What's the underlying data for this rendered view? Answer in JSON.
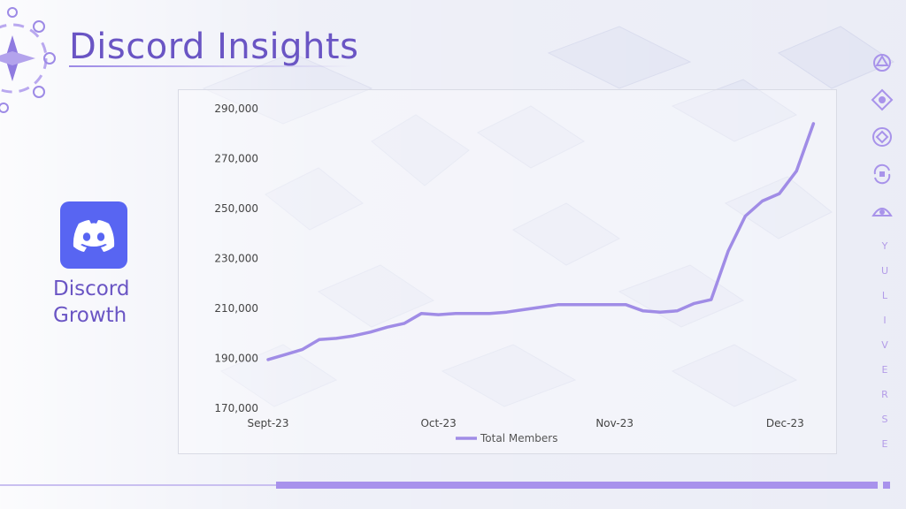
{
  "page": {
    "title": "Discord Insights",
    "side_label_line1": "Discord",
    "side_label_line2": "Growth",
    "brand_vertical": [
      "Y",
      "U",
      "L",
      "I",
      "V",
      "E",
      "R",
      "S",
      "E"
    ],
    "colors": {
      "accent": "#6a55c4",
      "line": "#a08ce6",
      "discord_blue": "#5865f2",
      "bar": "#a892ec"
    },
    "icons": {
      "logo": "discord-logo-icon",
      "corner": "compass-emblem-icon",
      "right": [
        "emblem-1-icon",
        "emblem-2-icon",
        "emblem-3-icon",
        "emblem-4-icon",
        "emblem-5-icon"
      ]
    }
  },
  "chart_data": {
    "type": "line",
    "x": [
      "2023-09-01",
      "2023-09-04",
      "2023-09-07",
      "2023-09-10",
      "2023-09-13",
      "2023-09-16",
      "2023-09-19",
      "2023-09-22",
      "2023-09-25",
      "2023-09-28",
      "2023-10-01",
      "2023-10-04",
      "2023-10-07",
      "2023-10-10",
      "2023-10-13",
      "2023-10-16",
      "2023-10-19",
      "2023-10-22",
      "2023-10-25",
      "2023-10-28",
      "2023-10-31",
      "2023-11-03",
      "2023-11-06",
      "2023-11-09",
      "2023-11-12",
      "2023-11-15",
      "2023-11-18",
      "2023-11-21",
      "2023-11-24",
      "2023-11-27",
      "2023-11-30",
      "2023-12-03",
      "2023-12-06"
    ],
    "series": [
      {
        "name": "Total Members",
        "values": [
          189500,
          191500,
          193500,
          197500,
          198000,
          199000,
          200500,
          202500,
          204000,
          208000,
          207500,
          208000,
          208000,
          208000,
          208500,
          209500,
          210500,
          211500,
          211500,
          211500,
          211500,
          211500,
          209000,
          208500,
          209000,
          212000,
          213500,
          233000,
          247000,
          253000,
          256000,
          265000,
          284000
        ]
      }
    ],
    "x_ticks": [
      "Sept-23",
      "Oct-23",
      "Nov-23",
      "Dec-23"
    ],
    "y_ticks": [
      "170,000",
      "190,000",
      "210,000",
      "230,000",
      "250,000",
      "270,000",
      "290,000"
    ],
    "ylim": [
      170000,
      290000
    ],
    "legend": "bottom-center",
    "grid": false
  }
}
